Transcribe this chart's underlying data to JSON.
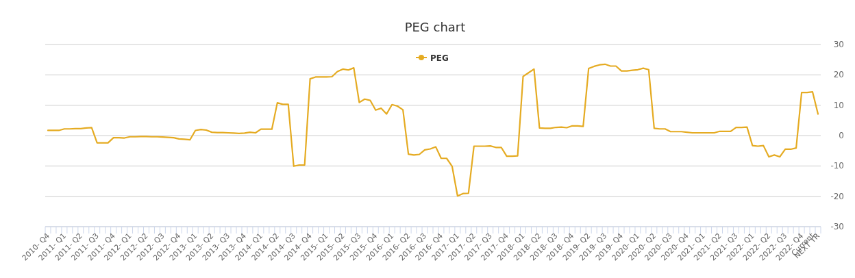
{
  "chart_data": {
    "type": "line",
    "title": "PEG chart",
    "categories": [
      "2010- Q4",
      null,
      null,
      "2011- Q1",
      null,
      null,
      "2011- Q2",
      null,
      null,
      "2011- Q3",
      null,
      null,
      "2011- Q4",
      null,
      null,
      "2012- Q1",
      null,
      null,
      "2012- Q2",
      null,
      null,
      "2012- Q3",
      null,
      null,
      "2012- Q4",
      null,
      null,
      "2013- Q1",
      null,
      null,
      "2013- Q2",
      null,
      null,
      "2013- Q3",
      null,
      null,
      "2013- Q4",
      null,
      null,
      "2014- Q1",
      null,
      null,
      "2014- Q2",
      null,
      null,
      "2014- Q3",
      null,
      null,
      "2014- Q4",
      null,
      null,
      "2015- Q1",
      null,
      null,
      "2015- Q2",
      null,
      null,
      "2015- Q3",
      null,
      null,
      "2015- Q4",
      null,
      null,
      "2016- Q1",
      null,
      null,
      "2016- Q2",
      null,
      null,
      "2016- Q3",
      null,
      null,
      "2016- Q4",
      null,
      null,
      "2017- Q1",
      null,
      null,
      "2017- Q2",
      null,
      null,
      "2017- Q3",
      null,
      null,
      "2017- Q4",
      null,
      null,
      "2018- Q1",
      null,
      null,
      "2018- Q2",
      null,
      null,
      "2018- Q3",
      null,
      null,
      "2018- Q4",
      null,
      null,
      "2019- Q2",
      null,
      null,
      "2019- Q3",
      null,
      null,
      "2019- Q4",
      null,
      null,
      "2020- Q1",
      null,
      null,
      "2020- Q2",
      null,
      null,
      "2020- Q3",
      null,
      null,
      "2020- Q4",
      null,
      null,
      "2021- Q1",
      null,
      null,
      "2021- Q2",
      null,
      null,
      "2021- Q3",
      null,
      null,
      "2022- Q1",
      null,
      null,
      "2022- Q2",
      null,
      null,
      "2022- Q3",
      null,
      null,
      "2022- Q4",
      null,
      "Current",
      "NEXT YR"
    ],
    "series": [
      {
        "name": "PEG",
        "color": "#e5ab22",
        "values": [
          1.7,
          1.7,
          1.7,
          2.2,
          2.2,
          2.3,
          2.3,
          2.5,
          2.6,
          -2.4,
          -2.4,
          -2.4,
          -0.7,
          -0.7,
          -0.8,
          -0.4,
          -0.4,
          -0.3,
          -0.3,
          -0.4,
          -0.4,
          -0.5,
          -0.6,
          -0.7,
          -1.1,
          -1.2,
          -1.4,
          1.7,
          2.0,
          1.8,
          1.1,
          1.0,
          1.0,
          0.9,
          0.8,
          0.7,
          0.8,
          1.1,
          0.9,
          2.1,
          2.1,
          2.1,
          10.8,
          10.3,
          10.3,
          -10.1,
          -9.7,
          -9.7,
          18.7,
          19.3,
          19.3,
          19.3,
          19.4,
          21.1,
          21.9,
          21.6,
          22.3,
          10.9,
          12.0,
          11.6,
          8.4,
          9.0,
          7.1,
          10.2,
          9.7,
          8.5,
          -6.1,
          -6.4,
          -6.2,
          -4.7,
          -4.4,
          -3.7,
          -7.5,
          -7.5,
          -10.1,
          -19.9,
          -19.1,
          -19.0,
          -3.5,
          -3.5,
          -3.5,
          -3.4,
          -3.9,
          -3.9,
          -6.8,
          -6.8,
          -6.7,
          19.5,
          20.7,
          21.9,
          2.5,
          2.4,
          2.4,
          2.7,
          2.8,
          2.6,
          3.2,
          3.2,
          3.0,
          22.1,
          22.8,
          23.3,
          23.5,
          22.9,
          22.9,
          21.3,
          21.3,
          21.5,
          21.7,
          22.2,
          21.7,
          2.4,
          2.2,
          2.2,
          1.3,
          1.3,
          1.3,
          1.1,
          0.9,
          0.9,
          0.9,
          0.9,
          0.9,
          1.4,
          1.4,
          1.4,
          2.7,
          2.7,
          2.8,
          -3.3,
          -3.5,
          -3.3,
          -7.0,
          -6.4,
          -7.0,
          -4.5,
          -4.5,
          -4.1,
          14.2,
          14.2,
          14.4,
          7.1
        ]
      }
    ],
    "ylim": [
      -30,
      30
    ],
    "yticks": [
      -30,
      -20,
      -10,
      0,
      10,
      20,
      30
    ],
    "grid": "y",
    "legend": "top"
  }
}
